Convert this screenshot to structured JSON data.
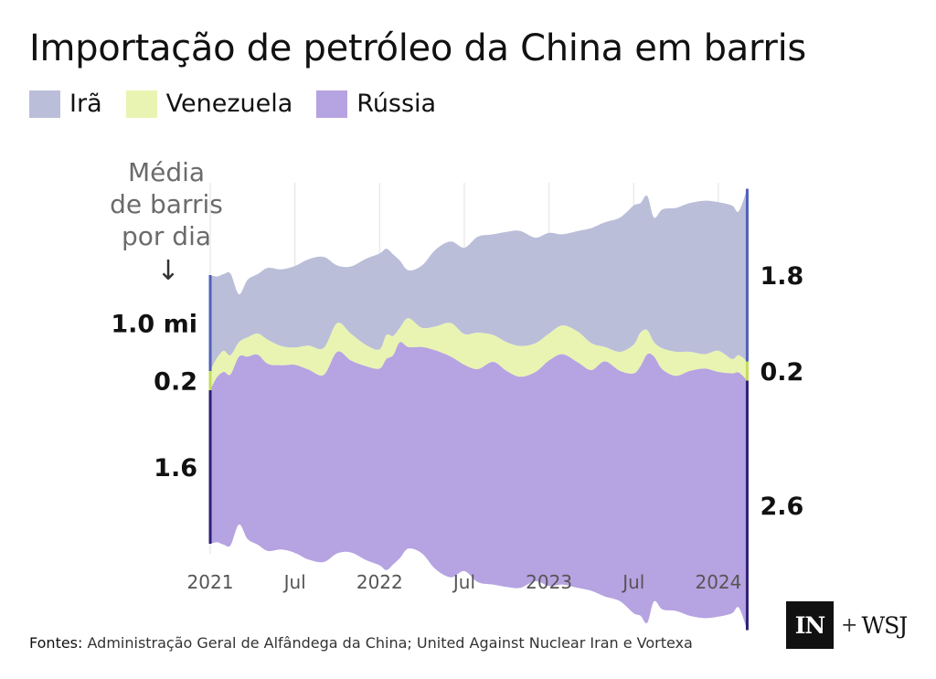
{
  "title": "Importação de petróleo da China em barris",
  "legend": [
    {
      "label": "Irã",
      "color": "#bbbed9"
    },
    {
      "label": "Venezuela",
      "color": "#e9f4b2"
    },
    {
      "label": "Rússia",
      "color": "#b6a3e1"
    }
  ],
  "unit_note": [
    "Média",
    "de barris",
    "por dia"
  ],
  "unit_arrow": "↓",
  "source": {
    "label": "Fontes:",
    "text": "Administração Geral de Alfândega da China; United Against Nuclear Iran e Vortexa"
  },
  "logo": {
    "box": "IN",
    "plus": "+",
    "partner": "WSJ"
  },
  "colors": {
    "iran": "#bbbed9",
    "venezuela": "#e9f4b2",
    "russia": "#b6a3e1",
    "bracket_dark": "#2e1f78",
    "bracket_iran": "#5060b8",
    "bracket_venezuela": "#c6dc5a",
    "grid": "#e6e6e6"
  },
  "chart_data": {
    "type": "area",
    "subtype": "streamgraph",
    "title": "Importação de petróleo da China em barris",
    "ylabel": "Média de barris por dia",
    "x_range": [
      2021.0,
      2024.2
    ],
    "gridlines": [
      2021.0,
      2021.5,
      2022.0,
      2022.5,
      2023.0,
      2023.5,
      2024.0
    ],
    "x_ticks": [
      {
        "x": 2021.0,
        "label": "2021"
      },
      {
        "x": 2021.5,
        "label": "Jul"
      },
      {
        "x": 2022.0,
        "label": "2022"
      },
      {
        "x": 2022.5,
        "label": "Jul"
      },
      {
        "x": 2023.0,
        "label": "2023"
      },
      {
        "x": 2023.5,
        "label": "Jul"
      },
      {
        "x": 2024.0,
        "label": "2024"
      }
    ],
    "x": [
      2021.0,
      2021.04,
      2021.08,
      2021.12,
      2021.17,
      2021.22,
      2021.28,
      2021.34,
      2021.42,
      2021.5,
      2021.58,
      2021.67,
      2021.75,
      2021.83,
      2021.92,
      2022.0,
      2022.04,
      2022.08,
      2022.12,
      2022.17,
      2022.25,
      2022.33,
      2022.42,
      2022.5,
      2022.58,
      2022.67,
      2022.75,
      2022.83,
      2022.92,
      2023.0,
      2023.08,
      2023.17,
      2023.25,
      2023.33,
      2023.42,
      2023.5,
      2023.54,
      2023.58,
      2023.62,
      2023.67,
      2023.75,
      2023.83,
      2023.92,
      2024.0,
      2024.08,
      2024.12,
      2024.17
    ],
    "series": [
      {
        "name": "Rússia",
        "values": [
          1.6,
          1.72,
          1.8,
          1.78,
          1.75,
          1.9,
          1.98,
          1.95,
          1.92,
          1.96,
          1.98,
          1.95,
          2.1,
          2.0,
          2.02,
          2.05,
          2.2,
          2.18,
          2.25,
          2.1,
          2.15,
          2.28,
          2.3,
          2.15,
          2.22,
          2.32,
          2.25,
          2.2,
          2.18,
          2.35,
          2.4,
          2.35,
          2.3,
          2.45,
          2.4,
          2.5,
          2.6,
          2.8,
          2.55,
          2.5,
          2.45,
          2.55,
          2.6,
          2.55,
          2.5,
          2.45,
          2.6
        ]
      },
      {
        "name": "Venezuela",
        "values": [
          0.2,
          0.2,
          0.22,
          0.2,
          0.15,
          0.2,
          0.22,
          0.25,
          0.2,
          0.18,
          0.25,
          0.28,
          0.3,
          0.28,
          0.22,
          0.2,
          0.25,
          0.2,
          0.15,
          0.3,
          0.2,
          0.25,
          0.35,
          0.32,
          0.38,
          0.28,
          0.3,
          0.32,
          0.3,
          0.28,
          0.3,
          0.32,
          0.28,
          0.15,
          0.2,
          0.3,
          0.35,
          0.25,
          0.15,
          0.22,
          0.25,
          0.2,
          0.15,
          0.22,
          0.15,
          0.18,
          0.2
        ]
      },
      {
        "name": "Irã",
        "values": [
          1.0,
          0.85,
          0.8,
          0.85,
          0.5,
          0.6,
          0.62,
          0.75,
          0.8,
          0.85,
          0.9,
          0.95,
          0.6,
          0.7,
          0.9,
          1.0,
          0.9,
          0.85,
          0.7,
          0.5,
          0.65,
          0.8,
          0.85,
          0.9,
          1.0,
          1.05,
          1.15,
          1.2,
          1.1,
          1.05,
          0.95,
          1.05,
          1.2,
          1.3,
          1.4,
          1.45,
          1.35,
          1.4,
          1.3,
          1.45,
          1.5,
          1.55,
          1.6,
          1.55,
          1.6,
          1.5,
          1.8
        ]
      }
    ],
    "start_labels": [
      {
        "series": "Irã",
        "label": "1.0 mi"
      },
      {
        "series": "Venezuela",
        "label": "0.2"
      },
      {
        "series": "Rússia",
        "label": "1.6"
      }
    ],
    "end_labels": [
      {
        "series": "Irã",
        "label": "1.8"
      },
      {
        "series": "Venezuela",
        "label": "0.2"
      },
      {
        "series": "Rússia",
        "label": "2.6"
      }
    ]
  }
}
